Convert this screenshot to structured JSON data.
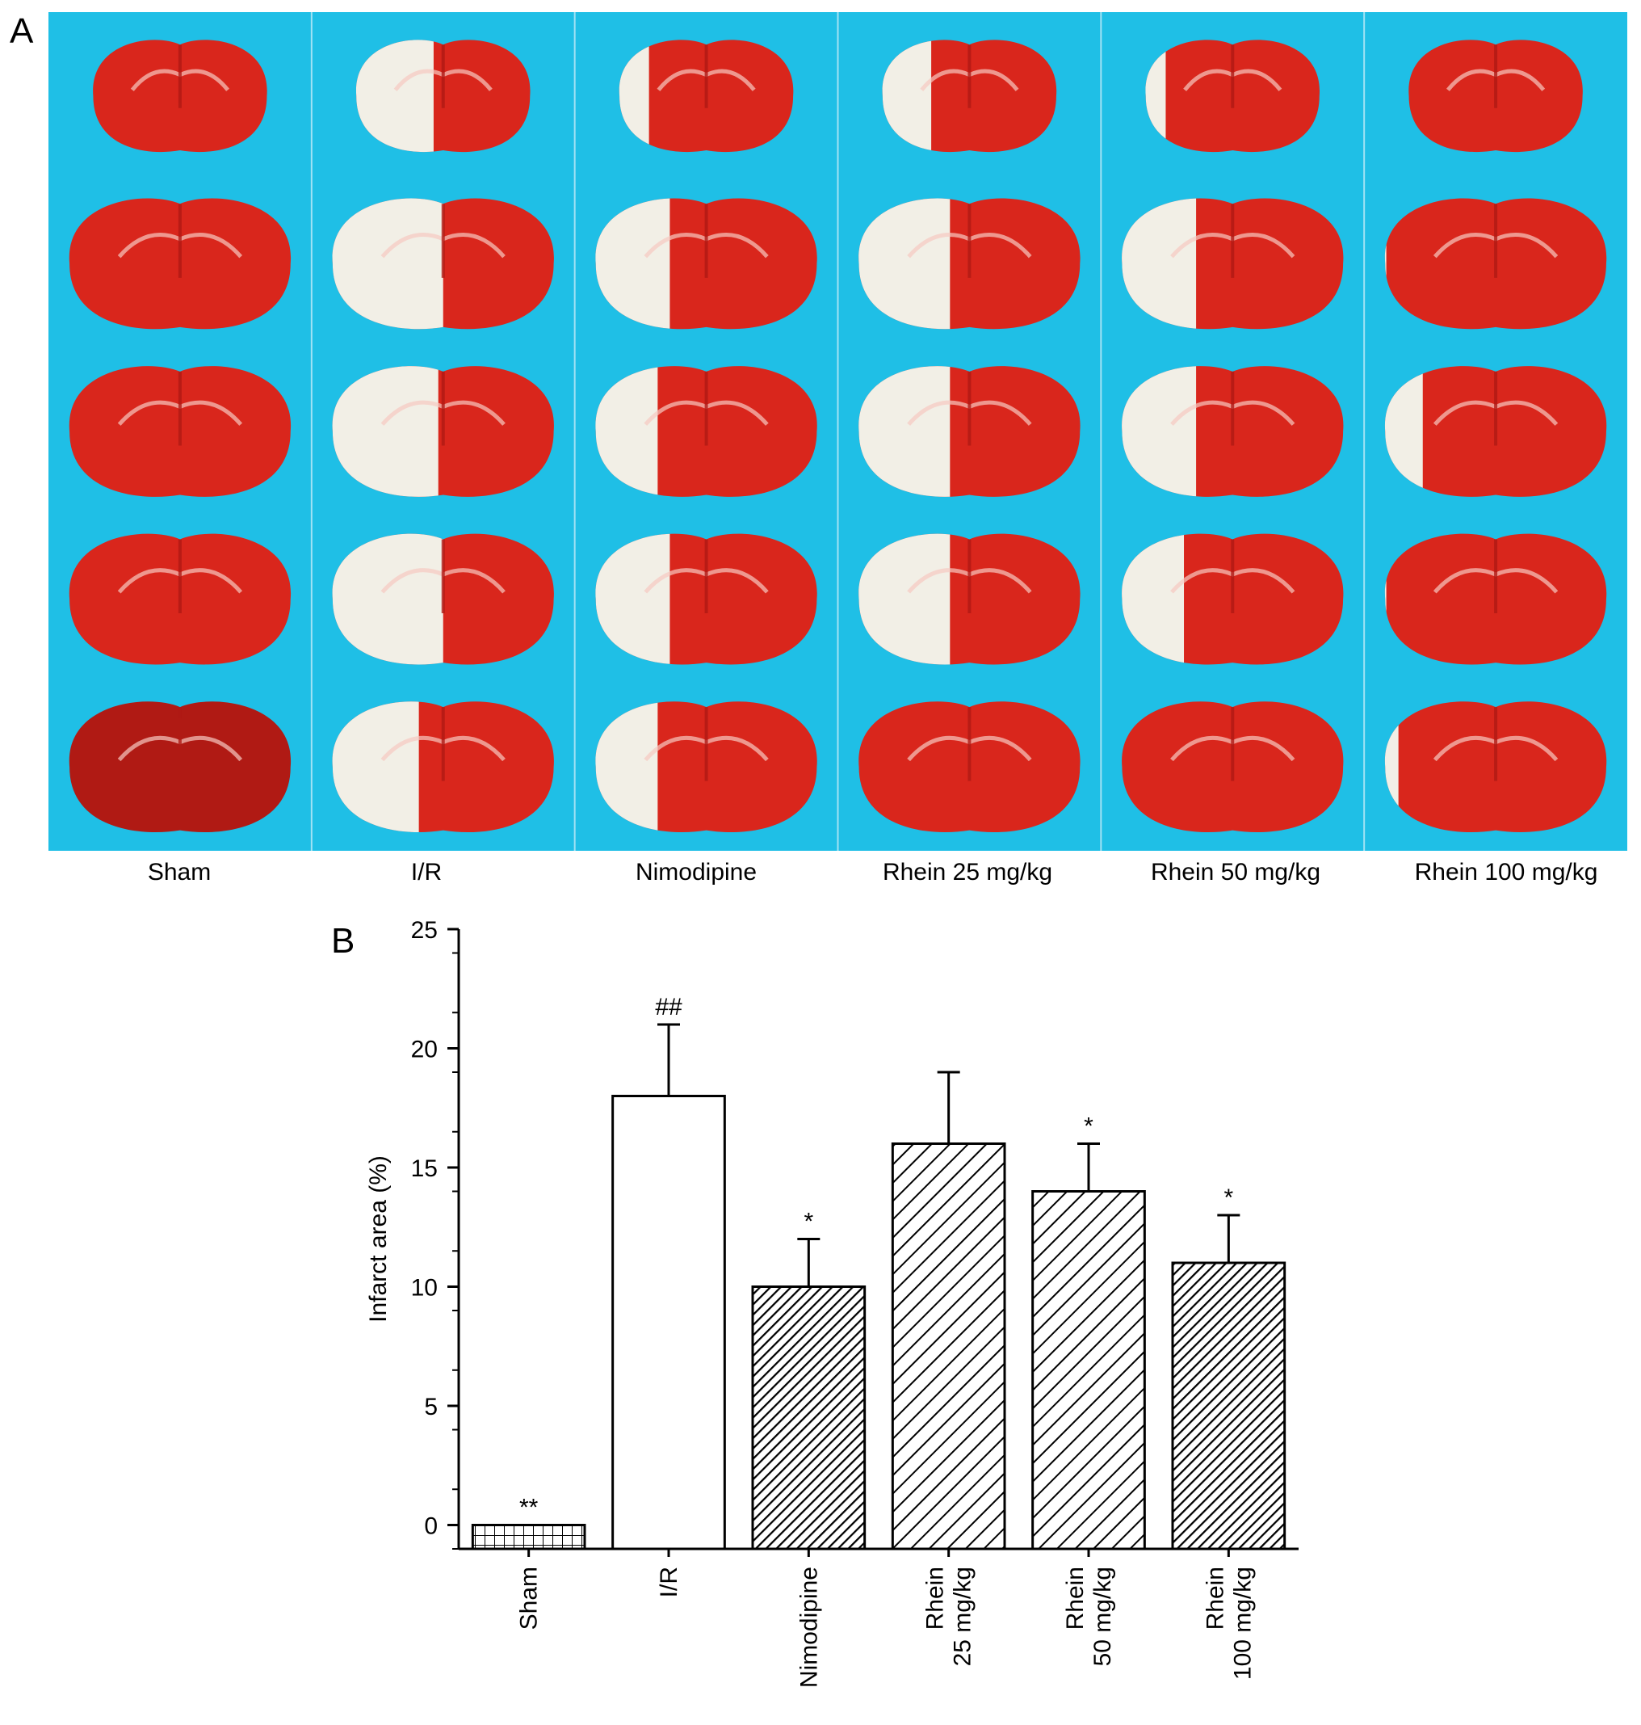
{
  "figure": {
    "panel_a_letter": "A",
    "panel_b_letter": "B",
    "groups": [
      "Sham",
      "I/R",
      "Nimodipine",
      "Rhein 25 mg/kg",
      "Rhein 50 mg/kg",
      "Rhein 100 mg/kg"
    ]
  },
  "colors": {
    "photo_background": "#1fbfe6",
    "tissue_red": "#d9261c",
    "tissue_dark_red": "#b01a14",
    "tissue_pale": "#f2efe6"
  },
  "chart_data": {
    "type": "bar",
    "categories": [
      "Sham",
      "I/R",
      "Nimodipine",
      "Rhein\n25 mg/kg",
      "Rhein\n50 mg/kg",
      "Rhein\n100 mg/kg"
    ],
    "values": [
      0,
      18,
      10,
      16,
      14,
      11
    ],
    "errors": [
      0,
      3,
      2,
      3,
      2,
      2
    ],
    "significance": [
      "**",
      "##",
      "*",
      "",
      "*",
      "*"
    ],
    "fill_patterns": [
      "grid",
      "none",
      "dense-diagonal",
      "diagonal",
      "diagonal",
      "dense-diagonal"
    ],
    "title": "",
    "xlabel": "",
    "ylabel": "Infarct area (%)",
    "ylim": [
      -1,
      25
    ],
    "yticks": [
      0,
      5,
      10,
      15,
      20,
      25
    ],
    "grid": false,
    "legend": "none"
  }
}
